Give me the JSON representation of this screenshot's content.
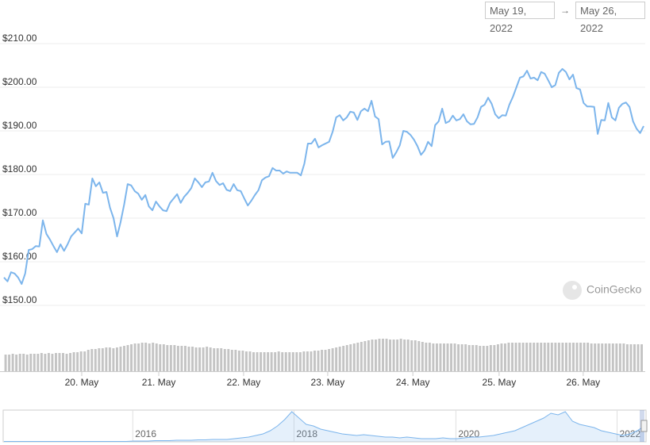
{
  "date_range": {
    "from": "May 19, 2022",
    "separator": "→",
    "to": "May 26, 2022"
  },
  "watermark": "CoinGecko",
  "chart_data": {
    "type": "line",
    "series": [
      {
        "name": "Price",
        "color": "#7cb5ec",
        "values": [
          156.4,
          155.5,
          157.6,
          157.3,
          156.4,
          154.9,
          157.3,
          162.7,
          162.9,
          163.6,
          163.5,
          169.5,
          166.4,
          165.1,
          163.6,
          162.2,
          164.0,
          162.5,
          164.0,
          165.8,
          166.7,
          167.6,
          166.5,
          173.3,
          173.1,
          179.1,
          177.3,
          178.2,
          175.8,
          176.0,
          172.4,
          170.0,
          165.8,
          169.1,
          173.1,
          177.8,
          177.5,
          176.2,
          175.6,
          174.2,
          175.3,
          172.7,
          171.8,
          173.8,
          172.7,
          171.8,
          171.6,
          173.5,
          174.5,
          175.5,
          173.5,
          174.9,
          175.8,
          176.9,
          179.1,
          178.2,
          177.1,
          178.2,
          178.4,
          180.4,
          178.5,
          177.6,
          178.0,
          176.5,
          176.2,
          177.8,
          176.4,
          176.2,
          174.5,
          172.9,
          174.0,
          175.3,
          176.4,
          178.7,
          179.3,
          179.6,
          181.5,
          180.9,
          180.9,
          180.2,
          180.7,
          180.4,
          180.4,
          180.4,
          179.8,
          182.5,
          187.1,
          187.1,
          188.2,
          186.2,
          186.7,
          187.1,
          187.5,
          189.8,
          193.1,
          193.6,
          192.4,
          193.1,
          194.4,
          194.2,
          192.5,
          194.5,
          195.1,
          194.5,
          196.9,
          193.3,
          192.7,
          186.9,
          187.5,
          187.6,
          183.8,
          185.1,
          186.7,
          190.0,
          189.8,
          189.1,
          188.0,
          186.5,
          184.5,
          185.5,
          187.5,
          186.5,
          191.3,
          192.2,
          195.1,
          191.8,
          192.2,
          193.5,
          192.4,
          192.7,
          193.8,
          192.2,
          191.5,
          191.6,
          193.1,
          195.5,
          196.0,
          197.6,
          196.2,
          193.8,
          192.9,
          193.6,
          193.5,
          196.0,
          197.8,
          200.0,
          202.2,
          202.5,
          203.8,
          202.0,
          202.2,
          201.6,
          203.5,
          203.1,
          201.6,
          200.0,
          200.5,
          203.3,
          204.2,
          203.5,
          201.8,
          202.9,
          199.8,
          199.5,
          196.4,
          195.6,
          195.6,
          195.5,
          189.3,
          192.5,
          192.4,
          196.4,
          193.1,
          192.4,
          195.3,
          196.2,
          196.5,
          195.5,
          192.2,
          190.5,
          189.5,
          191.1
        ]
      }
    ],
    "xlim": [
      0,
      181
    ],
    "xticks": [
      {
        "value": 22,
        "label": "20. May"
      },
      {
        "value": 43.8,
        "label": "21. May"
      },
      {
        "value": 67.8,
        "label": "22. May"
      },
      {
        "value": 91.6,
        "label": "23. May"
      },
      {
        "value": 115.7,
        "label": "24. May"
      },
      {
        "value": 140.1,
        "label": "25. May"
      },
      {
        "value": 163.9,
        "label": "26. May"
      }
    ],
    "ylim": [
      150,
      210
    ],
    "yticks": [
      {
        "value": 150,
        "label": "$150.00"
      },
      {
        "value": 160,
        "label": "$160.00"
      },
      {
        "value": 170,
        "label": "$170.00"
      },
      {
        "value": 180,
        "label": "$180.00"
      },
      {
        "value": 190,
        "label": "$190.00"
      },
      {
        "value": 200,
        "label": "$200.00"
      },
      {
        "value": 210,
        "label": "$210.00"
      }
    ],
    "grid": true,
    "volume": {
      "color": "#c4c4c4",
      "ylim": [
        0,
        50
      ],
      "values": [
        21,
        21,
        22,
        21,
        22,
        22,
        21,
        22,
        22,
        22,
        23,
        22,
        23,
        22,
        23,
        23,
        23,
        22,
        23,
        24,
        24,
        25,
        25,
        27,
        28,
        28,
        29,
        29,
        30,
        30,
        29,
        30,
        31,
        32,
        33,
        34,
        35,
        35,
        36,
        36,
        35,
        36,
        35,
        34,
        34,
        33,
        33,
        33,
        32,
        32,
        32,
        31,
        31,
        30,
        30,
        30,
        31,
        30,
        29,
        29,
        29,
        28,
        28,
        27,
        27,
        26,
        26,
        25,
        25,
        24,
        24,
        24,
        24,
        24,
        24,
        24,
        25,
        24,
        24,
        24,
        24,
        24,
        24,
        25,
        25,
        25,
        26,
        26,
        27,
        27,
        28,
        29,
        30,
        31,
        32,
        33,
        34,
        35,
        36,
        37,
        38,
        39,
        40,
        40,
        41,
        41,
        41,
        40,
        40,
        40,
        41,
        40,
        40,
        39,
        39,
        38,
        37,
        36,
        36,
        35,
        35,
        35,
        35,
        35,
        35,
        35,
        34,
        34,
        34,
        33,
        33,
        33,
        32,
        32,
        32,
        33,
        33,
        34,
        35,
        35,
        36,
        36,
        36,
        36,
        36,
        36,
        36,
        36,
        36,
        36,
        36,
        36,
        36,
        36,
        36,
        36,
        36,
        36,
        36,
        36,
        36,
        36,
        36,
        35,
        35,
        35,
        35,
        35,
        35,
        35,
        35,
        35,
        35,
        34,
        34,
        34,
        34,
        34
      ]
    },
    "navigator": {
      "color": "#7cb5ec",
      "xlim": [
        0,
        89
      ],
      "ylim": [
        0,
        40
      ],
      "xticks": [
        {
          "value": 17.9,
          "label": "2016"
        },
        {
          "value": 40.3,
          "label": "2018"
        },
        {
          "value": 62.8,
          "label": "2020"
        },
        {
          "value": 85.2,
          "label": "2022"
        }
      ],
      "values": [
        0.5,
        0.5,
        0.5,
        0.5,
        0.5,
        0.5,
        0.5,
        0.5,
        0.5,
        0.5,
        0.5,
        0.5,
        0.5,
        0.5,
        0.5,
        0.5,
        0.5,
        0.5,
        1,
        1,
        1,
        1.5,
        1.5,
        1.5,
        2,
        2,
        2,
        2.5,
        2.5,
        3,
        3,
        3,
        4,
        5,
        6,
        8,
        10,
        14,
        20,
        28,
        38,
        30,
        22,
        20,
        16,
        14,
        12,
        10,
        9,
        8,
        9,
        8,
        7,
        6,
        6,
        5,
        6,
        5,
        4,
        4,
        4,
        5,
        4,
        4,
        5,
        6,
        6,
        7,
        8,
        10,
        12,
        14,
        18,
        22,
        26,
        30,
        36,
        34,
        38,
        26,
        22,
        20,
        18,
        14,
        12,
        10,
        8,
        10,
        14,
        20
      ]
    }
  }
}
